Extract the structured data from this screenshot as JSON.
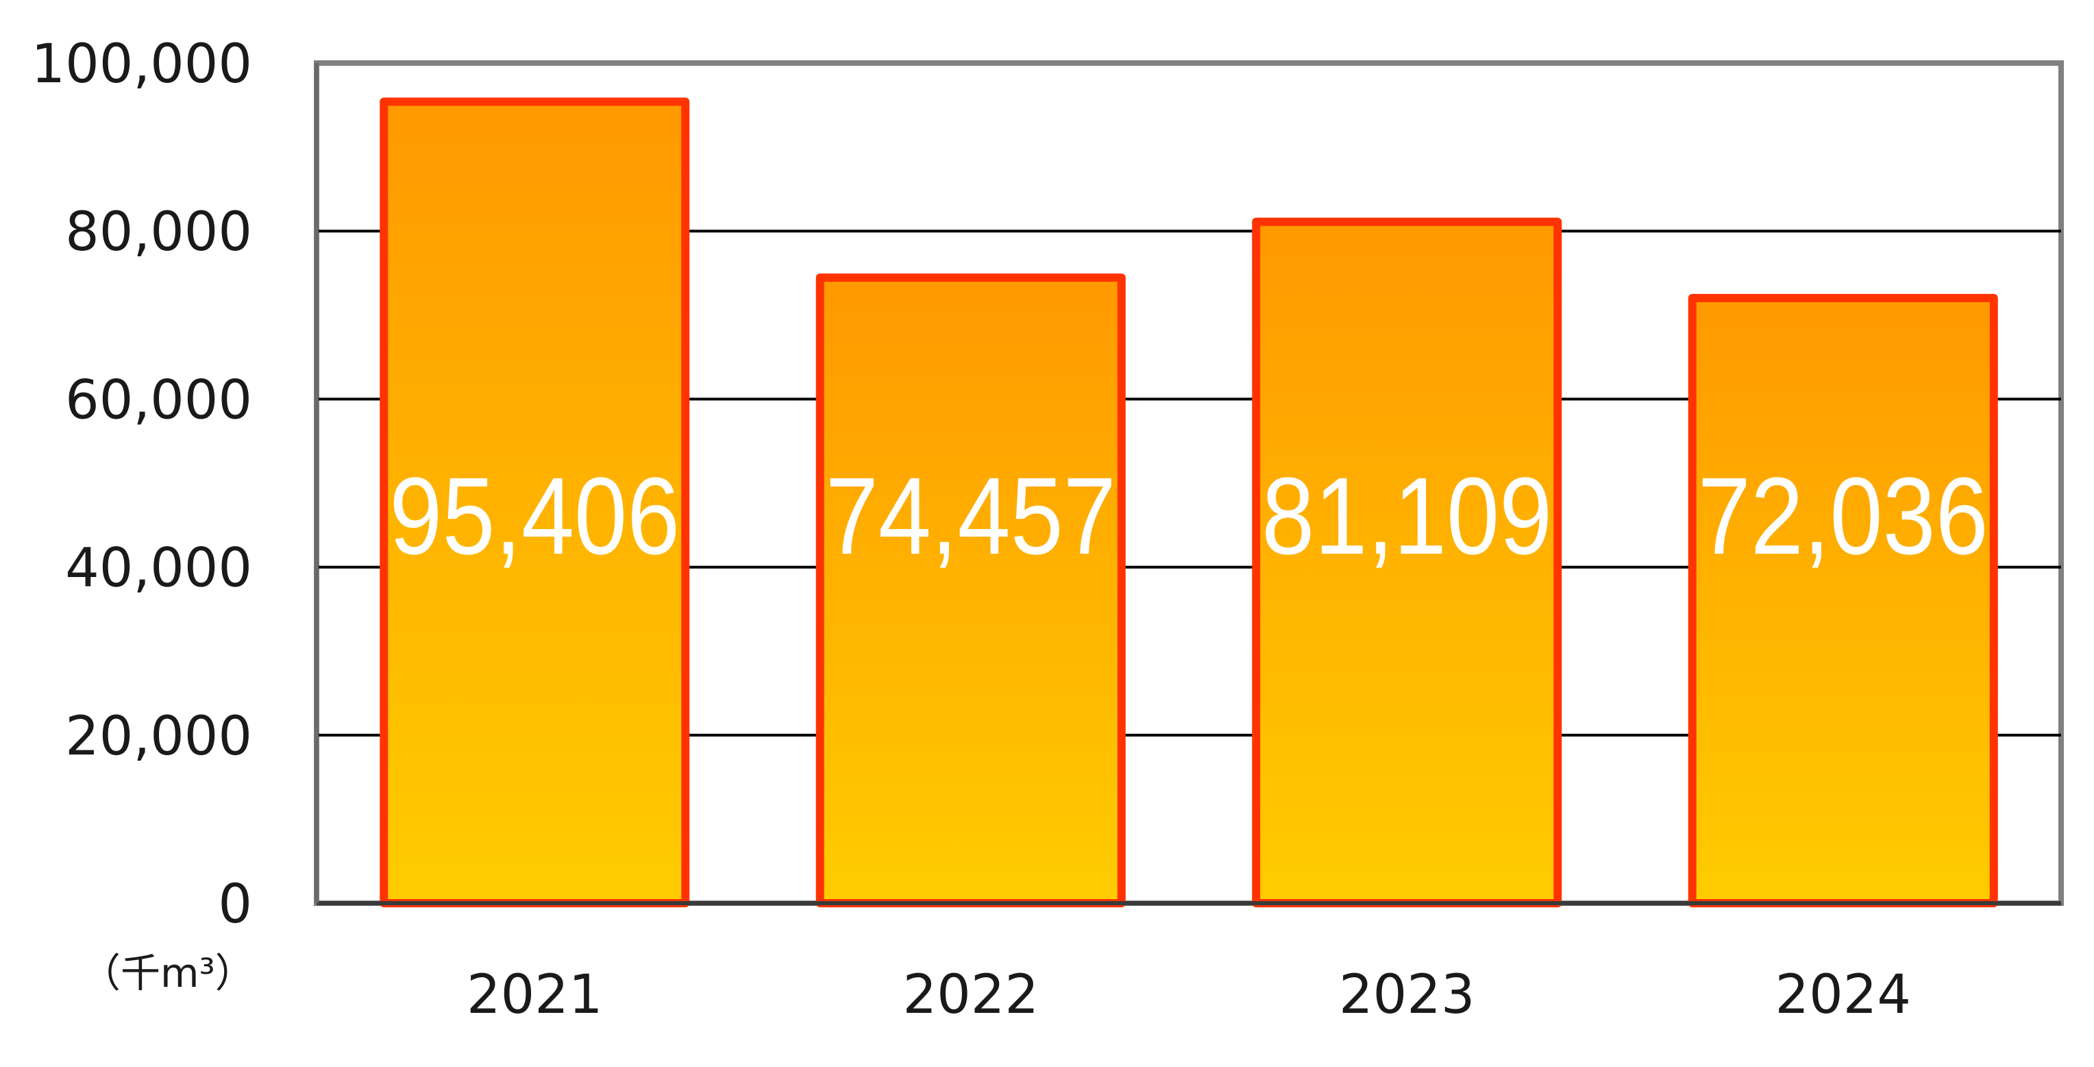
{
  "chart_data": {
    "type": "bar",
    "categories": [
      "2021",
      "2022",
      "2023",
      "2024"
    ],
    "values": [
      95406,
      74457,
      81109,
      72036
    ],
    "data_labels": [
      "95,406",
      "74,457",
      "81,109",
      "72,036"
    ],
    "ylim": [
      0,
      100000
    ],
    "y_ticks": [
      0,
      20000,
      40000,
      60000,
      80000,
      100000
    ],
    "y_tick_labels": [
      "0",
      "20,000",
      "40,000",
      "60,000",
      "80,000",
      "100,000"
    ],
    "unit_label": "（千m³）",
    "title": "",
    "xlabel": "",
    "ylabel": "",
    "grid": true,
    "legend": "none",
    "colors": {
      "bar_fill_top": "#ff9900",
      "bar_fill_bottom": "#ffcc00",
      "bar_border": "#ff3300",
      "gridline": "#000000",
      "plot_frame": "#808080",
      "data_label": "#ffffff"
    }
  }
}
